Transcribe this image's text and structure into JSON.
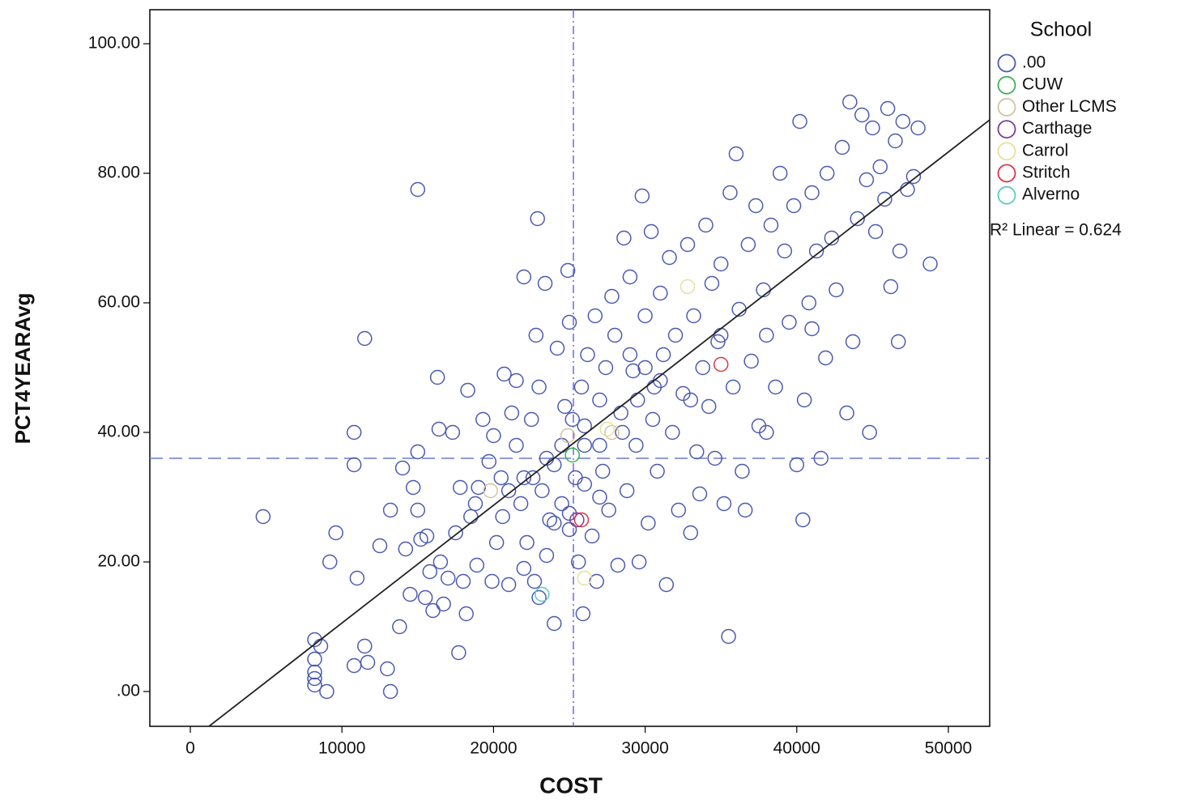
{
  "chart_data": {
    "type": "scatter",
    "x_label": "COST",
    "y_label": "PCT4YEARAvg",
    "legend_title": "School",
    "annotation": "R² Linear = 0.624",
    "xlim": [
      -2671,
      52724
    ],
    "ylim": [
      -5.375,
      105.25
    ],
    "xticks": [
      0,
      10000,
      20000,
      30000,
      40000,
      50000
    ],
    "yticks": [
      {
        "value": 0,
        "label": ".00"
      },
      {
        "value": 20,
        "label": "20.00"
      },
      {
        "value": 40,
        "label": "40.00"
      },
      {
        "value": 60,
        "label": "60.00"
      },
      {
        "value": 80,
        "label": "80.00"
      },
      {
        "value": 100,
        "label": "100.00"
      }
    ],
    "reference_lines": {
      "x": 25267,
      "y": 36
    },
    "fit_line": {
      "slope": 0.001818,
      "intercept": -7.61
    },
    "series": [
      {
        "name": ".00",
        "color": "#4b5ab0",
        "x": [
          4800,
          8200,
          8200,
          8200,
          8200,
          8200,
          8600,
          9000,
          9200,
          9600,
          10800,
          11000,
          11500,
          11700,
          10800,
          10800,
          11500,
          12500,
          13000,
          13200,
          13200,
          13800,
          14000,
          14200,
          14500,
          14700,
          15000,
          15000,
          15000,
          15200,
          15500,
          15600,
          15800,
          16000,
          16300,
          16400,
          16500,
          16700,
          17000,
          17300,
          17500,
          17700,
          17800,
          18000,
          18200,
          18300,
          18500,
          18800,
          18900,
          19000,
          19300,
          19700,
          19900,
          20000,
          20200,
          20500,
          20600,
          20700,
          21000,
          21200,
          21500,
          21500,
          21800,
          22000,
          22000,
          22200,
          22500,
          22600,
          22700,
          22800,
          22900,
          23000,
          23000,
          23200,
          23400,
          23500,
          23700,
          24000,
          24000,
          24200,
          24500,
          24700,
          24900,
          25000,
          25000,
          25200,
          25400,
          25600,
          25800,
          25900,
          26000,
          26200,
          26500,
          26700,
          26800,
          27000,
          27200,
          27400,
          27600,
          27800,
          28000,
          28200,
          28400,
          28600,
          28800,
          29000,
          29200,
          29400,
          29600,
          29800,
          30000,
          30200,
          30400,
          30600,
          30800,
          31000,
          31200,
          31400,
          31600,
          31800,
          32000,
          32200,
          32500,
          32800,
          33000,
          33200,
          33400,
          33600,
          33800,
          34000,
          34200,
          34400,
          34600,
          34800,
          35000,
          35200,
          35500,
          35600,
          35800,
          36000,
          36200,
          36400,
          36600,
          36800,
          37000,
          37300,
          37500,
          37800,
          38000,
          38300,
          38600,
          38900,
          39200,
          39500,
          39800,
          40000,
          40200,
          40400,
          40500,
          40800,
          41000,
          41300,
          41600,
          41900,
          42000,
          42300,
          42600,
          43000,
          43300,
          43500,
          43700,
          44000,
          44300,
          44600,
          44800,
          45000,
          45200,
          45500,
          45800,
          46000,
          46200,
          46500,
          46700,
          46800,
          47000,
          47300,
          47700,
          48000,
          48800,
          26000,
          27000,
          28500,
          29500,
          30500,
          31000,
          24500,
          23500,
          22000,
          21000,
          29000,
          30000,
          33000,
          35000,
          27000,
          26000,
          25000,
          24000,
          38000,
          41000
        ],
        "values": [
          27,
          8,
          5,
          3,
          2,
          1,
          7,
          0,
          20,
          24.5,
          4,
          17.5,
          7,
          4.5,
          40,
          35,
          54.5,
          22.5,
          3.5,
          0,
          28,
          10,
          34.5,
          22,
          15,
          31.5,
          77.5,
          37,
          28,
          23.5,
          14.5,
          24,
          18.5,
          12.5,
          48.5,
          40.5,
          20,
          13.5,
          17.5,
          40,
          24.5,
          6,
          31.5,
          17,
          12,
          46.5,
          27,
          29,
          19.5,
          31.5,
          42,
          35.5,
          17,
          39.5,
          23,
          33,
          27,
          49,
          16.5,
          43,
          38,
          48,
          29,
          64,
          19,
          23,
          42,
          33,
          17,
          55,
          73,
          47,
          14.5,
          31,
          63,
          21,
          26.5,
          10.5,
          35,
          53,
          29,
          44,
          65,
          57,
          27.5,
          42,
          33,
          20,
          47,
          12,
          38,
          52,
          24,
          58,
          17,
          45,
          34,
          50,
          28,
          61,
          55,
          19.5,
          43,
          70,
          31,
          64,
          49.5,
          38,
          20,
          76.5,
          58,
          26,
          71,
          47,
          34,
          61.5,
          52,
          16.5,
          67,
          40,
          55,
          28,
          46,
          69,
          24.5,
          58,
          37,
          30.5,
          50,
          72,
          44,
          63,
          36,
          54,
          66,
          29,
          8.5,
          77,
          47,
          83,
          59,
          34,
          28,
          69,
          51,
          75,
          41,
          62,
          55,
          72,
          47,
          80,
          68,
          57,
          75,
          35,
          88,
          26.5,
          45,
          60,
          77,
          68,
          36,
          51.5,
          80,
          70,
          62,
          84,
          43,
          91,
          54,
          73,
          89,
          79,
          40,
          87,
          71,
          81,
          76,
          90,
          62.5,
          85,
          54,
          68,
          88,
          77.5,
          79.5,
          87,
          66,
          41,
          38,
          40,
          45,
          42,
          48,
          38,
          36,
          33,
          31,
          52,
          50,
          45,
          55,
          30,
          32,
          25,
          26,
          40,
          56
        ]
      },
      {
        "name": "CUW",
        "color": "#3fae5a",
        "x": [
          25200
        ],
        "values": [
          36.5
        ]
      },
      {
        "name": "Other LCMS",
        "color": "#d2c2a2",
        "x": [
          19800,
          24900,
          27800
        ],
        "values": [
          31,
          39.5,
          40
        ]
      },
      {
        "name": "Carthage",
        "color": "#7b3f8f",
        "x": [
          25500
        ],
        "values": [
          26.5
        ]
      },
      {
        "name": "Carrol",
        "color": "#e8e09a",
        "x": [
          32800,
          26000,
          27500
        ],
        "values": [
          62.5,
          17.5,
          40.5
        ]
      },
      {
        "name": "Stritch",
        "color": "#d9364a",
        "x": [
          35000,
          25800
        ],
        "values": [
          50.5,
          26.5
        ]
      },
      {
        "name": "Alverno",
        "color": "#5ec8c8",
        "x": [
          23200
        ],
        "values": [
          15
        ]
      }
    ]
  }
}
